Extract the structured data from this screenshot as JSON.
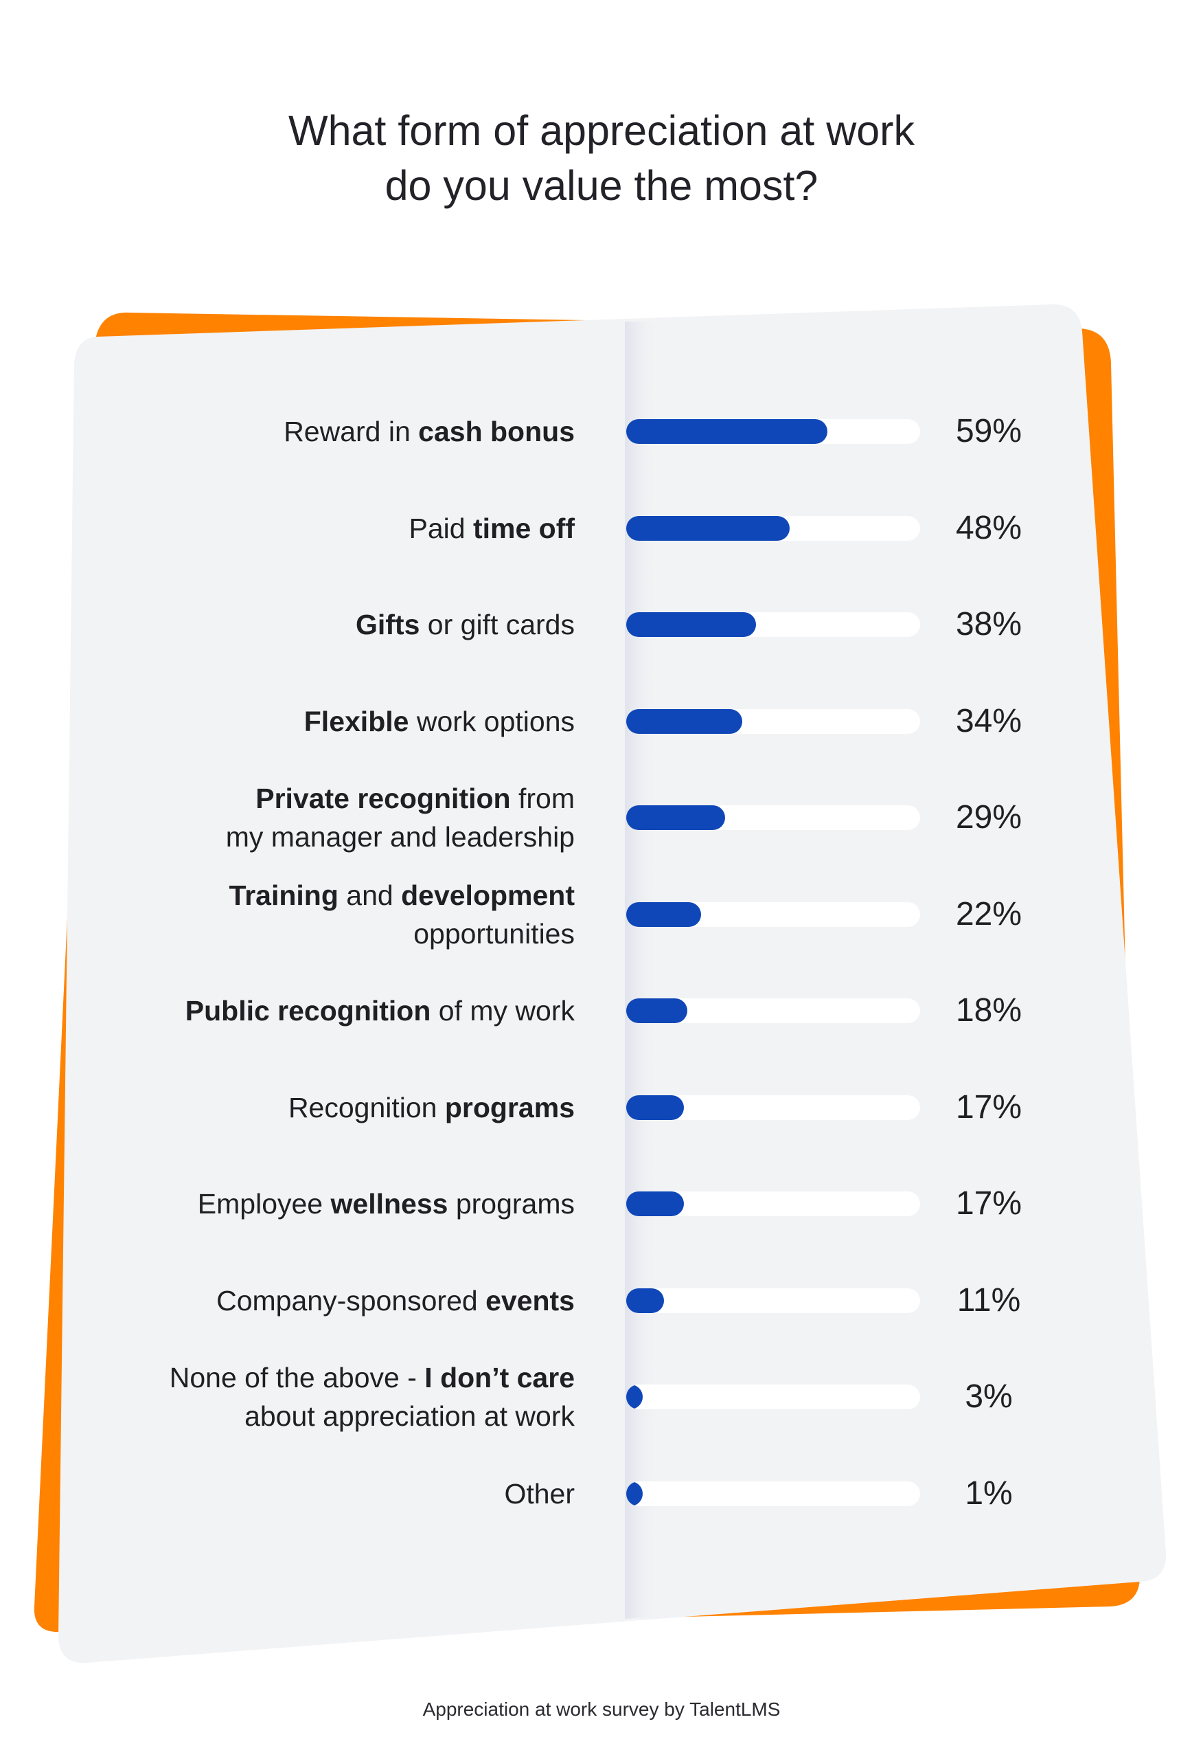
{
  "title_line1": "What form of appreciation at work",
  "title_line2": "do you value the most?",
  "footer": "Appreciation at work survey by TalentLMS",
  "colors": {
    "bar": "#0f47b8",
    "track": "#ffffff",
    "card": "#f2f3f5",
    "accent": "#ff8200",
    "text": "#1f1f24"
  },
  "chart_data": {
    "type": "bar",
    "orientation": "horizontal",
    "title": "What form of appreciation at work do you value the most?",
    "unit": "%",
    "xlim": [
      0,
      100
    ],
    "grid": false,
    "legend": "none",
    "categories": [
      "Reward in cash bonus",
      "Paid time off",
      "Gifts or gift cards",
      "Flexible work options",
      "Private recognition from my manager and leadership",
      "Training and development opportunities",
      "Public recognition of my work",
      "Recognition programs",
      "Employee wellness programs",
      "Company-sponsored events",
      "None of the above - I don’t care about appreciation at work",
      "Other"
    ],
    "values": [
      59,
      48,
      38,
      34,
      29,
      22,
      18,
      17,
      17,
      11,
      3,
      1
    ],
    "value_labels": [
      "59%",
      "48%",
      "38%",
      "34%",
      "29%",
      "22%",
      "18%",
      "17%",
      "17%",
      "11%",
      "3%",
      "1%"
    ],
    "label_parts": [
      [
        {
          "t": "Reward in ",
          "b": false
        },
        {
          "t": "cash bonus",
          "b": true
        }
      ],
      [
        {
          "t": "Paid ",
          "b": false
        },
        {
          "t": "time off",
          "b": true
        }
      ],
      [
        {
          "t": "Gifts",
          "b": true
        },
        {
          "t": " or gift cards",
          "b": false
        }
      ],
      [
        {
          "t": "Flexible",
          "b": true
        },
        {
          "t": " work options",
          "b": false
        }
      ],
      [
        {
          "t": "Private recognition",
          "b": true
        },
        {
          "t": " from\nmy manager and leadership",
          "b": false
        }
      ],
      [
        {
          "t": "Training",
          "b": true
        },
        {
          "t": " and ",
          "b": false
        },
        {
          "t": "development",
          "b": true
        },
        {
          "t": "\nopportunities",
          "b": false
        }
      ],
      [
        {
          "t": "Public recognition",
          "b": true
        },
        {
          "t": " of my work",
          "b": false
        }
      ],
      [
        {
          "t": "Recognition ",
          "b": false
        },
        {
          "t": "programs",
          "b": true
        }
      ],
      [
        {
          "t": "Employee ",
          "b": false
        },
        {
          "t": "wellness",
          "b": true
        },
        {
          "t": " programs",
          "b": false
        }
      ],
      [
        {
          "t": "Company-sponsored ",
          "b": false
        },
        {
          "t": "events",
          "b": true
        }
      ],
      [
        {
          "t": "None of the above - ",
          "b": false
        },
        {
          "t": "I don’t care",
          "b": true
        },
        {
          "t": "\nabout appreciation at work",
          "b": false
        }
      ],
      [
        {
          "t": "Other",
          "b": false
        }
      ]
    ]
  }
}
